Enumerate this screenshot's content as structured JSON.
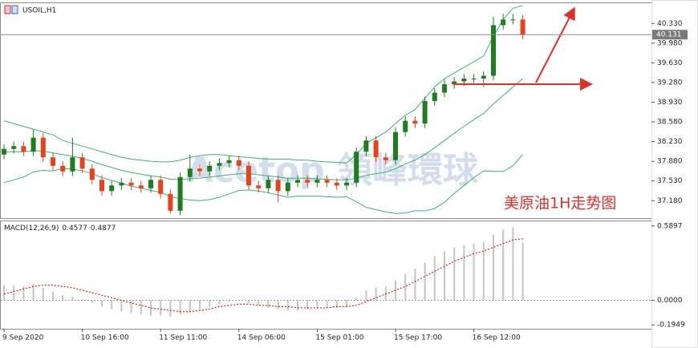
{
  "chart_data": [
    {
      "type": "candlestick",
      "title": "USOIL,H1",
      "categories": [
        "9 Sep 2020",
        null,
        null,
        null,
        null,
        null,
        null,
        null,
        "10 Sep 16:00",
        null,
        null,
        null,
        null,
        null,
        null,
        null,
        "11 Sep 11:00",
        null,
        null,
        null,
        null,
        null,
        null,
        null,
        "14 Sep 06:00",
        null,
        null,
        null,
        null,
        null,
        null,
        null,
        "15 Sep 01:00",
        null,
        null,
        null,
        null,
        null,
        null,
        null,
        "15 Sep 17:00",
        null,
        null,
        null,
        null,
        null,
        null,
        null,
        "16 Sep 12:00",
        null,
        null,
        null,
        null,
        null
      ],
      "open": [
        38.0,
        38.1,
        38.15,
        38.05,
        38.3,
        37.95,
        37.8,
        37.7,
        37.95,
        37.75,
        37.55,
        37.35,
        37.45,
        37.5,
        37.45,
        37.4,
        37.55,
        37.3,
        37.0,
        37.6,
        37.75,
        37.7,
        37.8,
        37.85,
        37.9,
        37.8,
        37.45,
        37.4,
        37.55,
        37.35,
        37.5,
        37.55,
        37.5,
        37.55,
        37.5,
        37.45,
        37.5,
        38.05,
        38.25,
        37.95,
        37.9,
        38.4,
        38.6,
        38.55,
        38.95,
        39.1,
        39.25,
        39.3,
        39.35,
        39.35,
        39.4,
        40.3,
        40.4,
        40.4
      ],
      "high": [
        38.18,
        38.23,
        38.23,
        38.45,
        38.38,
        38.03,
        37.88,
        38.3,
        38.03,
        37.83,
        37.63,
        37.53,
        37.58,
        37.58,
        37.53,
        37.63,
        37.63,
        37.38,
        37.68,
        38.0,
        37.83,
        37.88,
        37.93,
        37.98,
        37.98,
        37.88,
        37.53,
        37.63,
        37.63,
        37.58,
        37.63,
        37.63,
        37.63,
        37.63,
        37.58,
        37.58,
        38.13,
        38.33,
        38.33,
        38.03,
        38.48,
        38.68,
        38.68,
        39.03,
        39.18,
        39.33,
        39.38,
        39.43,
        39.43,
        39.48,
        40.45,
        40.5,
        40.5,
        40.48
      ],
      "low": [
        37.92,
        38.02,
        37.97,
        37.97,
        37.87,
        37.72,
        37.62,
        37.62,
        37.67,
        37.47,
        37.27,
        37.27,
        37.37,
        37.37,
        37.32,
        37.32,
        37.22,
        36.95,
        36.92,
        37.52,
        37.62,
        37.62,
        37.72,
        37.77,
        37.72,
        37.37,
        37.32,
        37.32,
        37.15,
        37.27,
        37.42,
        37.42,
        37.42,
        37.42,
        37.37,
        37.37,
        37.42,
        37.97,
        37.87,
        37.82,
        37.82,
        38.32,
        38.47,
        38.47,
        38.87,
        39.02,
        39.17,
        39.22,
        39.27,
        39.2,
        39.32,
        40.22,
        40.32,
        40.05
      ],
      "close": [
        38.1,
        38.15,
        38.05,
        38.3,
        37.95,
        37.8,
        37.7,
        37.95,
        37.75,
        37.55,
        37.35,
        37.45,
        37.5,
        37.45,
        37.4,
        37.55,
        37.3,
        37.0,
        37.6,
        37.75,
        37.7,
        37.8,
        37.85,
        37.9,
        37.8,
        37.45,
        37.4,
        37.55,
        37.35,
        37.5,
        37.55,
        37.5,
        37.55,
        37.5,
        37.45,
        37.5,
        38.05,
        38.25,
        37.95,
        37.9,
        38.4,
        38.6,
        38.55,
        38.95,
        39.1,
        39.25,
        39.3,
        39.35,
        39.35,
        39.4,
        40.3,
        40.4,
        40.4,
        40.131
      ],
      "up_color": "#1e7d1e",
      "down_color": "#e8421c",
      "series": [
        {
          "color": "#3cb371",
          "values": [
            38.6,
            38.55,
            38.5,
            38.45,
            38.4,
            38.35,
            38.25,
            38.2,
            38.15,
            38.1,
            38.05,
            38.0,
            37.95,
            37.92,
            37.9,
            37.88,
            37.87,
            37.87,
            37.9,
            37.95,
            37.98,
            38.0,
            38.0,
            37.98,
            37.96,
            37.95,
            37.93,
            37.92,
            37.92,
            37.92,
            37.9,
            37.9,
            37.88,
            37.87,
            37.86,
            37.85,
            38.0,
            38.2,
            38.3,
            38.4,
            38.55,
            38.7,
            38.8,
            39.0,
            39.2,
            39.35,
            39.45,
            39.55,
            39.65,
            39.75,
            40.1,
            40.4,
            40.6,
            40.65
          ]
        },
        {
          "color": "#3cb371",
          "values": [
            38.05,
            38.05,
            38.05,
            38.07,
            38.06,
            38.03,
            38.0,
            37.97,
            37.93,
            37.88,
            37.82,
            37.77,
            37.72,
            37.68,
            37.65,
            37.62,
            37.6,
            37.56,
            37.56,
            37.57,
            37.58,
            37.6,
            37.62,
            37.64,
            37.66,
            37.66,
            37.64,
            37.62,
            37.6,
            37.58,
            37.58,
            37.58,
            37.57,
            37.56,
            37.55,
            37.55,
            37.58,
            37.63,
            37.66,
            37.69,
            37.75,
            37.83,
            37.9,
            38.0,
            38.12,
            38.25,
            38.38,
            38.5,
            38.62,
            38.73,
            38.9,
            39.05,
            39.2,
            39.35
          ]
        },
        {
          "color": "#3cb371",
          "values": [
            37.5,
            37.55,
            37.6,
            37.69,
            37.72,
            37.71,
            37.75,
            37.74,
            37.71,
            37.66,
            37.59,
            37.54,
            37.49,
            37.44,
            37.4,
            37.36,
            37.33,
            37.25,
            37.22,
            37.19,
            37.18,
            37.2,
            37.24,
            37.3,
            37.36,
            37.37,
            37.35,
            37.32,
            37.28,
            37.24,
            37.26,
            37.26,
            37.26,
            37.25,
            37.24,
            37.25,
            37.16,
            37.06,
            37.02,
            36.98,
            36.95,
            36.96,
            37.0,
            37.0,
            37.04,
            37.15,
            37.31,
            37.45,
            37.59,
            37.71,
            37.7,
            37.7,
            37.8,
            38.0
          ]
        }
      ],
      "current_price": 40.131,
      "ylim": [
        36.87,
        40.69
      ],
      "yticks": [
        {
          "value": 40.33,
          "label": "40.330"
        },
        {
          "value": 39.98,
          "label": "39.980"
        },
        {
          "value": 39.63,
          "label": "39.630"
        },
        {
          "value": 39.28,
          "label": "39.280"
        },
        {
          "value": 38.93,
          "label": "38.930"
        },
        {
          "value": 38.58,
          "label": "38.580"
        },
        {
          "value": 38.23,
          "label": "38.230"
        },
        {
          "value": 37.88,
          "label": "37.880"
        },
        {
          "value": 37.53,
          "label": "37.530"
        },
        {
          "value": 37.18,
          "label": "37.180"
        }
      ],
      "watermark": "Acetop 領峰環球",
      "annotation": "美原油1H走势图"
    },
    {
      "type": "macd",
      "label": "MACD(12,26,9)",
      "macd_value": 0.4577,
      "signal_value": 0.4877,
      "histogram": [
        0.12,
        0.12,
        0.11,
        0.13,
        0.1,
        0.07,
        0.04,
        0.03,
        0.01,
        -0.02,
        -0.05,
        -0.07,
        -0.09,
        -0.1,
        -0.11,
        -0.12,
        -0.12,
        -0.13,
        -0.11,
        -0.09,
        -0.07,
        -0.05,
        -0.03,
        -0.01,
        0.0,
        -0.02,
        -0.04,
        -0.06,
        -0.07,
        -0.08,
        -0.08,
        -0.07,
        -0.07,
        -0.06,
        -0.06,
        -0.05,
        0.02,
        0.08,
        0.1,
        0.11,
        0.16,
        0.21,
        0.25,
        0.3,
        0.35,
        0.39,
        0.42,
        0.44,
        0.45,
        0.46,
        0.52,
        0.56,
        0.58,
        0.4577
      ],
      "signal": [
        0.05,
        0.07,
        0.09,
        0.11,
        0.12,
        0.12,
        0.11,
        0.1,
        0.08,
        0.06,
        0.04,
        0.02,
        0.0,
        -0.02,
        -0.04,
        -0.06,
        -0.07,
        -0.08,
        -0.09,
        -0.09,
        -0.08,
        -0.07,
        -0.05,
        -0.04,
        -0.03,
        -0.03,
        -0.04,
        -0.04,
        -0.05,
        -0.05,
        -0.06,
        -0.06,
        -0.06,
        -0.06,
        -0.05,
        -0.05,
        -0.04,
        -0.01,
        0.02,
        0.05,
        0.08,
        0.11,
        0.15,
        0.19,
        0.23,
        0.27,
        0.31,
        0.34,
        0.37,
        0.39,
        0.42,
        0.45,
        0.48,
        0.4877
      ],
      "hist_color": "#c4c4c4",
      "signal_color": "#e02020",
      "ylim": [
        -0.2256,
        0.6266
      ],
      "yticks": [
        0.5897,
        {
          "value": 0,
          "label": "0.0000"
        },
        -0.1949
      ]
    }
  ]
}
